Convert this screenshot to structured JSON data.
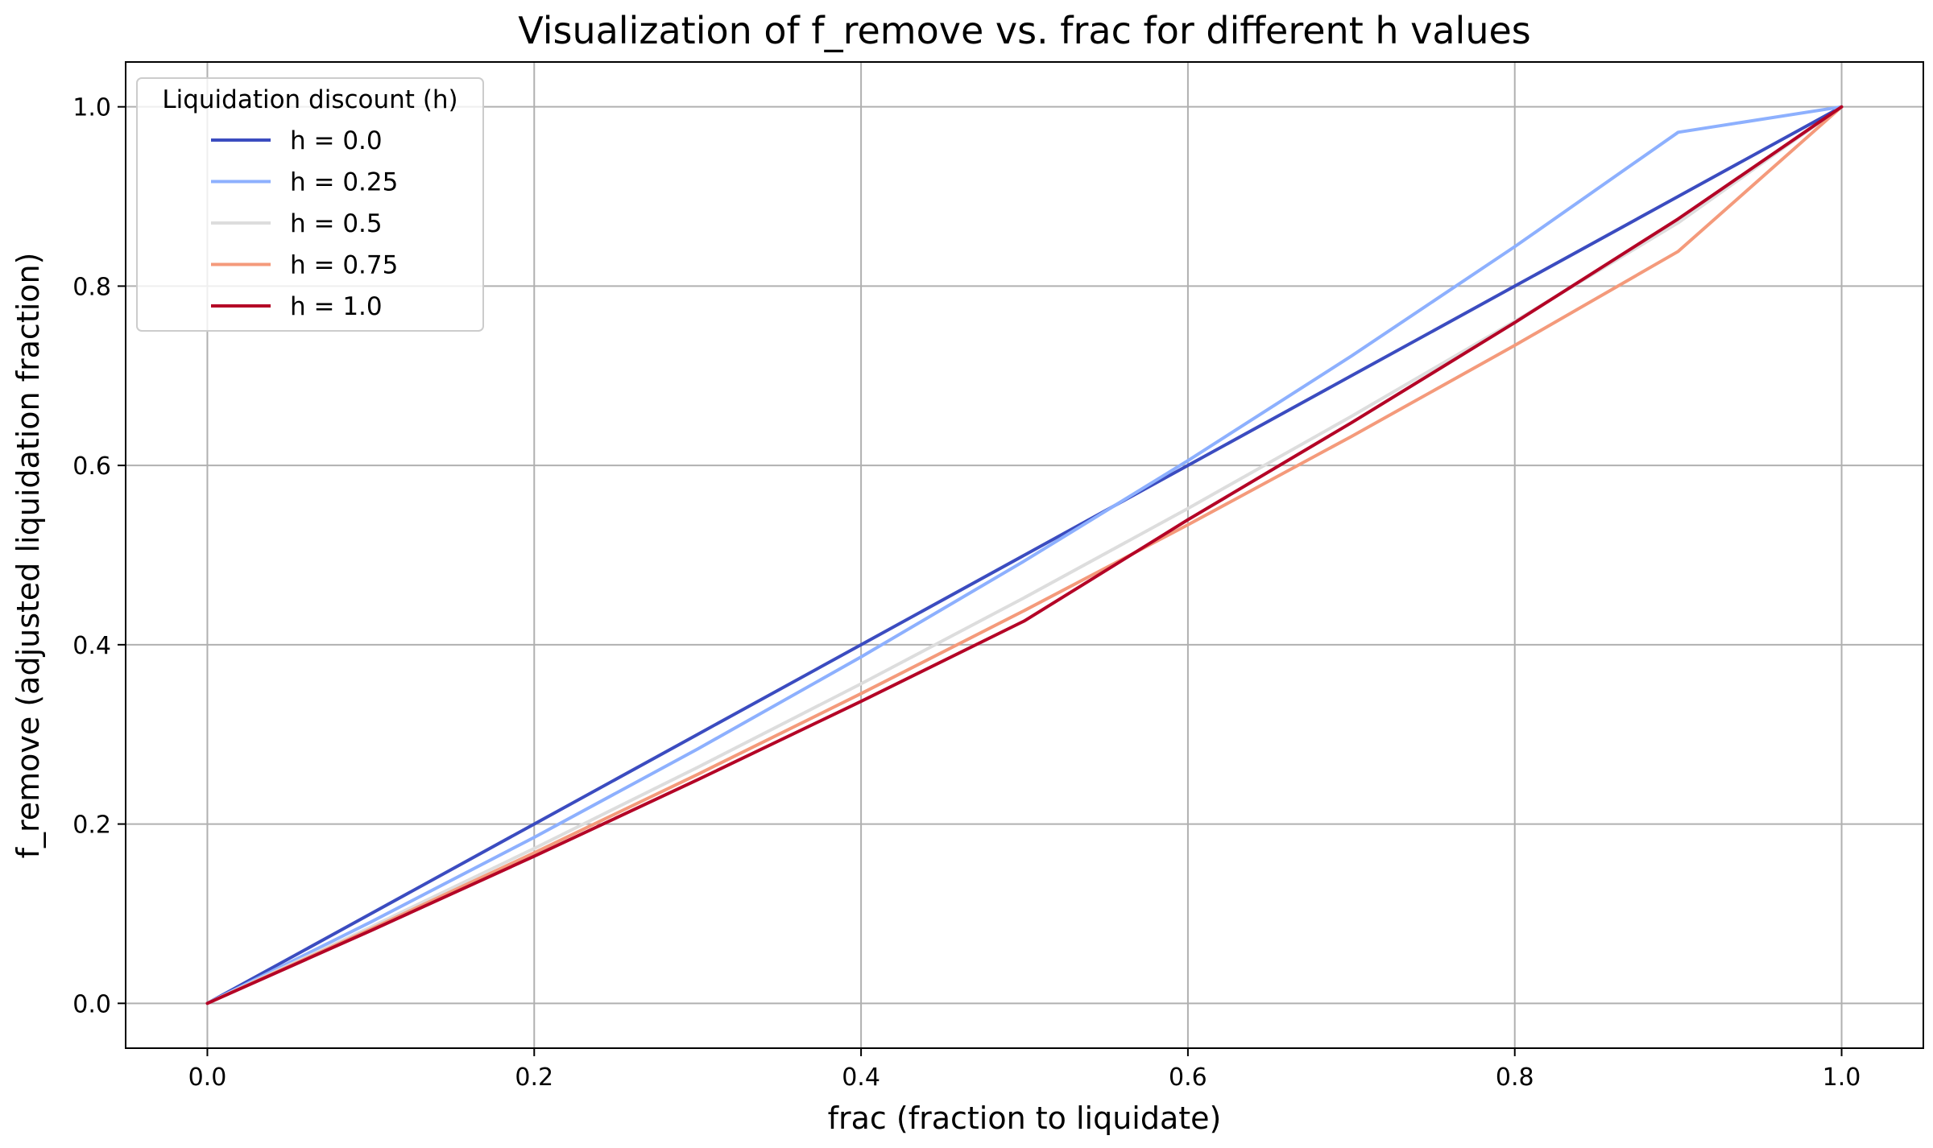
{
  "chart_data": {
    "type": "line",
    "title": "Visualization of f_remove vs. frac for different h values",
    "xlabel": "frac (fraction to liquidate)",
    "ylabel": "f_remove (adjusted liquidation fraction)",
    "xlim": [
      -0.05,
      1.05
    ],
    "ylim": [
      -0.05,
      1.05
    ],
    "xticks": [
      0.0,
      0.2,
      0.4,
      0.6,
      0.8,
      1.0
    ],
    "xtick_labels": [
      "0.0",
      "0.2",
      "0.4",
      "0.6",
      "0.8",
      "1.0"
    ],
    "yticks": [
      0.0,
      0.2,
      0.4,
      0.6,
      0.8,
      1.0
    ],
    "ytick_labels": [
      "0.0",
      "0.2",
      "0.4",
      "0.6",
      "0.8",
      "1.0"
    ],
    "grid": true,
    "legend": {
      "title": "Liquidation discount (h)",
      "placement": "top-left"
    },
    "x": [
      0.0,
      0.1,
      0.2,
      0.3,
      0.4,
      0.5,
      0.6,
      0.7,
      0.8,
      0.9,
      1.0
    ],
    "series": [
      {
        "name": "h = 0.0",
        "color": "#3b4cc0",
        "values": [
          0.0,
          0.1,
          0.2,
          0.3,
          0.4,
          0.5,
          0.6,
          0.7,
          0.8,
          0.9,
          1.0
        ]
      },
      {
        "name": "h = 0.25",
        "color": "#8db0fe",
        "values": [
          0.0,
          0.0907,
          0.1852,
          0.2837,
          0.3864,
          0.4935,
          0.6053,
          0.722,
          0.844,
          0.9716,
          1.0
        ]
      },
      {
        "name": "h = 0.5",
        "color": "#dddddd",
        "values": [
          0.0,
          0.0851,
          0.1728,
          0.2632,
          0.3564,
          0.4526,
          0.552,
          0.6547,
          0.7608,
          0.8707,
          1.0
        ]
      },
      {
        "name": "h = 0.75",
        "color": "#f49a7b",
        "values": [
          0.0,
          0.0828,
          0.1679,
          0.2554,
          0.3455,
          0.4382,
          0.5338,
          0.6323,
          0.7339,
          0.8387,
          1.0
        ]
      },
      {
        "name": "h = 1.0",
        "color": "#b40426",
        "values": [
          0.0,
          0.0811,
          0.1641,
          0.2494,
          0.3368,
          0.4266,
          0.5394,
          0.6475,
          0.7593,
          0.875,
          1.0
        ]
      }
    ]
  }
}
